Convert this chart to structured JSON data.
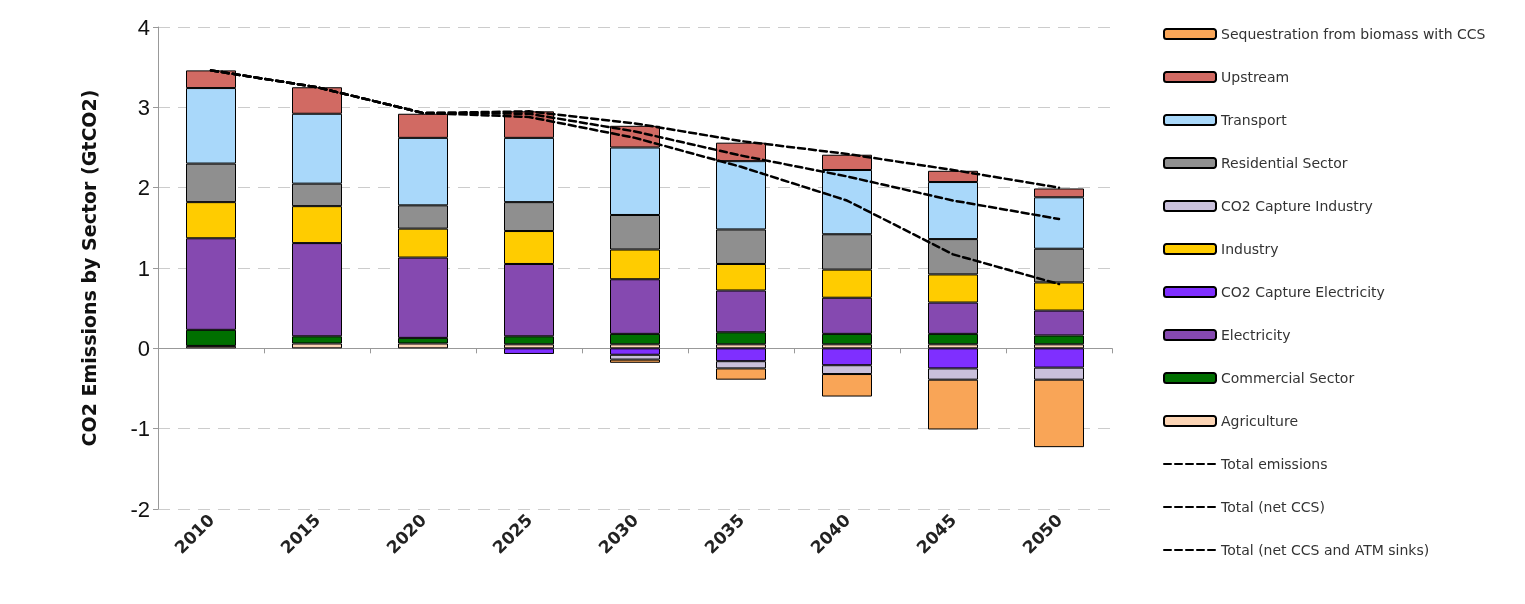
{
  "chart_data": {
    "type": "bar",
    "stacked": true,
    "ylabel": "CO2 Emissions by Sector (GtCO2)",
    "categories": [
      "2010",
      "2015",
      "2020",
      "2025",
      "2030",
      "2035",
      "2040",
      "2045",
      "2050"
    ],
    "ylim": [
      -2,
      4
    ],
    "yticks": [
      -2,
      -1,
      0,
      1,
      2,
      3,
      4
    ],
    "grid": "y",
    "legend": "right",
    "series": [
      {
        "name": "Agriculture",
        "color": "#fcd5b5",
        "values": [
          0.03,
          0.06,
          0.06,
          0.05,
          0.05,
          0.05,
          0.05,
          0.05,
          0.05
        ]
      },
      {
        "name": "Commercial Sector",
        "color": "#006f00",
        "values": [
          0.2,
          0.09,
          0.07,
          0.1,
          0.13,
          0.15,
          0.13,
          0.13,
          0.11
        ]
      },
      {
        "name": "Electricity",
        "color": "#8549b0",
        "values": [
          1.14,
          1.16,
          1.0,
          0.9,
          0.68,
          0.52,
          0.45,
          0.39,
          0.31
        ]
      },
      {
        "name": "CO2 Capture Electricity",
        "color": "#7f2fff",
        "values": [
          null,
          null,
          null,
          -0.07,
          -0.08,
          -0.16,
          -0.21,
          -0.25,
          -0.24
        ]
      },
      {
        "name": "Industry",
        "color": "#ffcc00",
        "values": [
          0.45,
          0.46,
          0.36,
          0.41,
          0.37,
          0.33,
          0.35,
          0.35,
          0.35
        ]
      },
      {
        "name": "CO2 Capture Industry",
        "color": "#c9c0db",
        "values": [
          null,
          null,
          null,
          null,
          -0.06,
          -0.09,
          -0.11,
          -0.14,
          -0.15
        ]
      },
      {
        "name": "Residential Sector",
        "color": "#8f8f8f",
        "values": [
          0.48,
          0.28,
          0.29,
          0.36,
          0.43,
          0.43,
          0.44,
          0.44,
          0.42
        ]
      },
      {
        "name": "Transport",
        "color": "#a9d8fa",
        "values": [
          0.94,
          0.87,
          0.84,
          0.8,
          0.84,
          0.85,
          0.8,
          0.71,
          0.64
        ]
      },
      {
        "name": "Upstream",
        "color": "#d16a63",
        "values": [
          0.22,
          0.33,
          0.3,
          0.33,
          0.27,
          0.23,
          0.19,
          0.14,
          0.11
        ]
      },
      {
        "name": "Sequestration from biomass with CCS",
        "color": "#f9a557",
        "values": [
          null,
          null,
          null,
          null,
          -0.04,
          -0.14,
          -0.28,
          -0.62,
          -0.84
        ]
      },
      {
        "name": "Total emissions",
        "type": "line",
        "color": "#000000",
        "line_style": "dashed",
        "values": [
          3.46,
          3.25,
          2.93,
          2.95,
          2.8,
          2.58,
          2.42,
          2.22,
          2.0
        ]
      },
      {
        "name": "Total (net CCS)",
        "type": "line",
        "color": "#000000",
        "line_style": "dashed",
        "values": [
          3.46,
          3.25,
          2.93,
          2.92,
          2.7,
          2.4,
          2.14,
          1.84,
          1.61
        ]
      },
      {
        "name": "Total (net CCS and ATM sinks)",
        "type": "line",
        "color": "#000000",
        "line_style": "dashed",
        "values": [
          3.46,
          3.25,
          2.93,
          2.88,
          2.62,
          2.26,
          1.84,
          1.17,
          0.8
        ]
      }
    ]
  }
}
